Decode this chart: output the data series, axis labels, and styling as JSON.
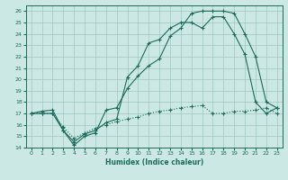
{
  "xlabel": "Humidex (Indice chaleur)",
  "bg_color": "#cce8e4",
  "line_color": "#1a6b5a",
  "grid_color": "#a0c8c0",
  "xlim": [
    -0.5,
    23.5
  ],
  "ylim": [
    14,
    26.5
  ],
  "yticks": [
    14,
    15,
    16,
    17,
    18,
    19,
    20,
    21,
    22,
    23,
    24,
    25,
    26
  ],
  "xticks": [
    0,
    1,
    2,
    3,
    4,
    5,
    6,
    7,
    8,
    9,
    10,
    11,
    12,
    13,
    14,
    15,
    16,
    17,
    18,
    19,
    20,
    21,
    22,
    23
  ],
  "series1_x": [
    0,
    1,
    2,
    3,
    4,
    5,
    6,
    7,
    8,
    9,
    10,
    11,
    12,
    13,
    14,
    15,
    16,
    17,
    18,
    19,
    20,
    21,
    22,
    23
  ],
  "series1_y": [
    17.0,
    17.2,
    17.3,
    15.5,
    14.2,
    15.0,
    15.3,
    17.3,
    17.5,
    19.2,
    20.3,
    21.2,
    21.8,
    23.8,
    24.5,
    25.8,
    26.0,
    26.0,
    26.0,
    25.8,
    24.0,
    22.0,
    18.0,
    17.5
  ],
  "series2_x": [
    0,
    1,
    2,
    3,
    4,
    5,
    6,
    7,
    8,
    9,
    10,
    11,
    12,
    13,
    14,
    15,
    16,
    17,
    18,
    19,
    20,
    21,
    22,
    23
  ],
  "series2_y": [
    17.0,
    17.0,
    17.0,
    15.5,
    14.5,
    15.2,
    15.5,
    16.2,
    16.5,
    20.2,
    21.2,
    23.2,
    23.5,
    24.5,
    25.0,
    25.0,
    24.5,
    25.5,
    25.5,
    24.0,
    22.2,
    18.0,
    17.0,
    17.5
  ],
  "series3_x": [
    0,
    1,
    2,
    3,
    4,
    5,
    6,
    7,
    8,
    9,
    10,
    11,
    12,
    13,
    14,
    15,
    16,
    17,
    18,
    19,
    20,
    21,
    22,
    23
  ],
  "series3_y": [
    17.0,
    17.0,
    17.0,
    15.8,
    14.8,
    15.3,
    15.7,
    16.0,
    16.3,
    16.5,
    16.7,
    17.0,
    17.2,
    17.3,
    17.5,
    17.6,
    17.7,
    17.0,
    17.0,
    17.2,
    17.2,
    17.3,
    17.5,
    17.0
  ]
}
